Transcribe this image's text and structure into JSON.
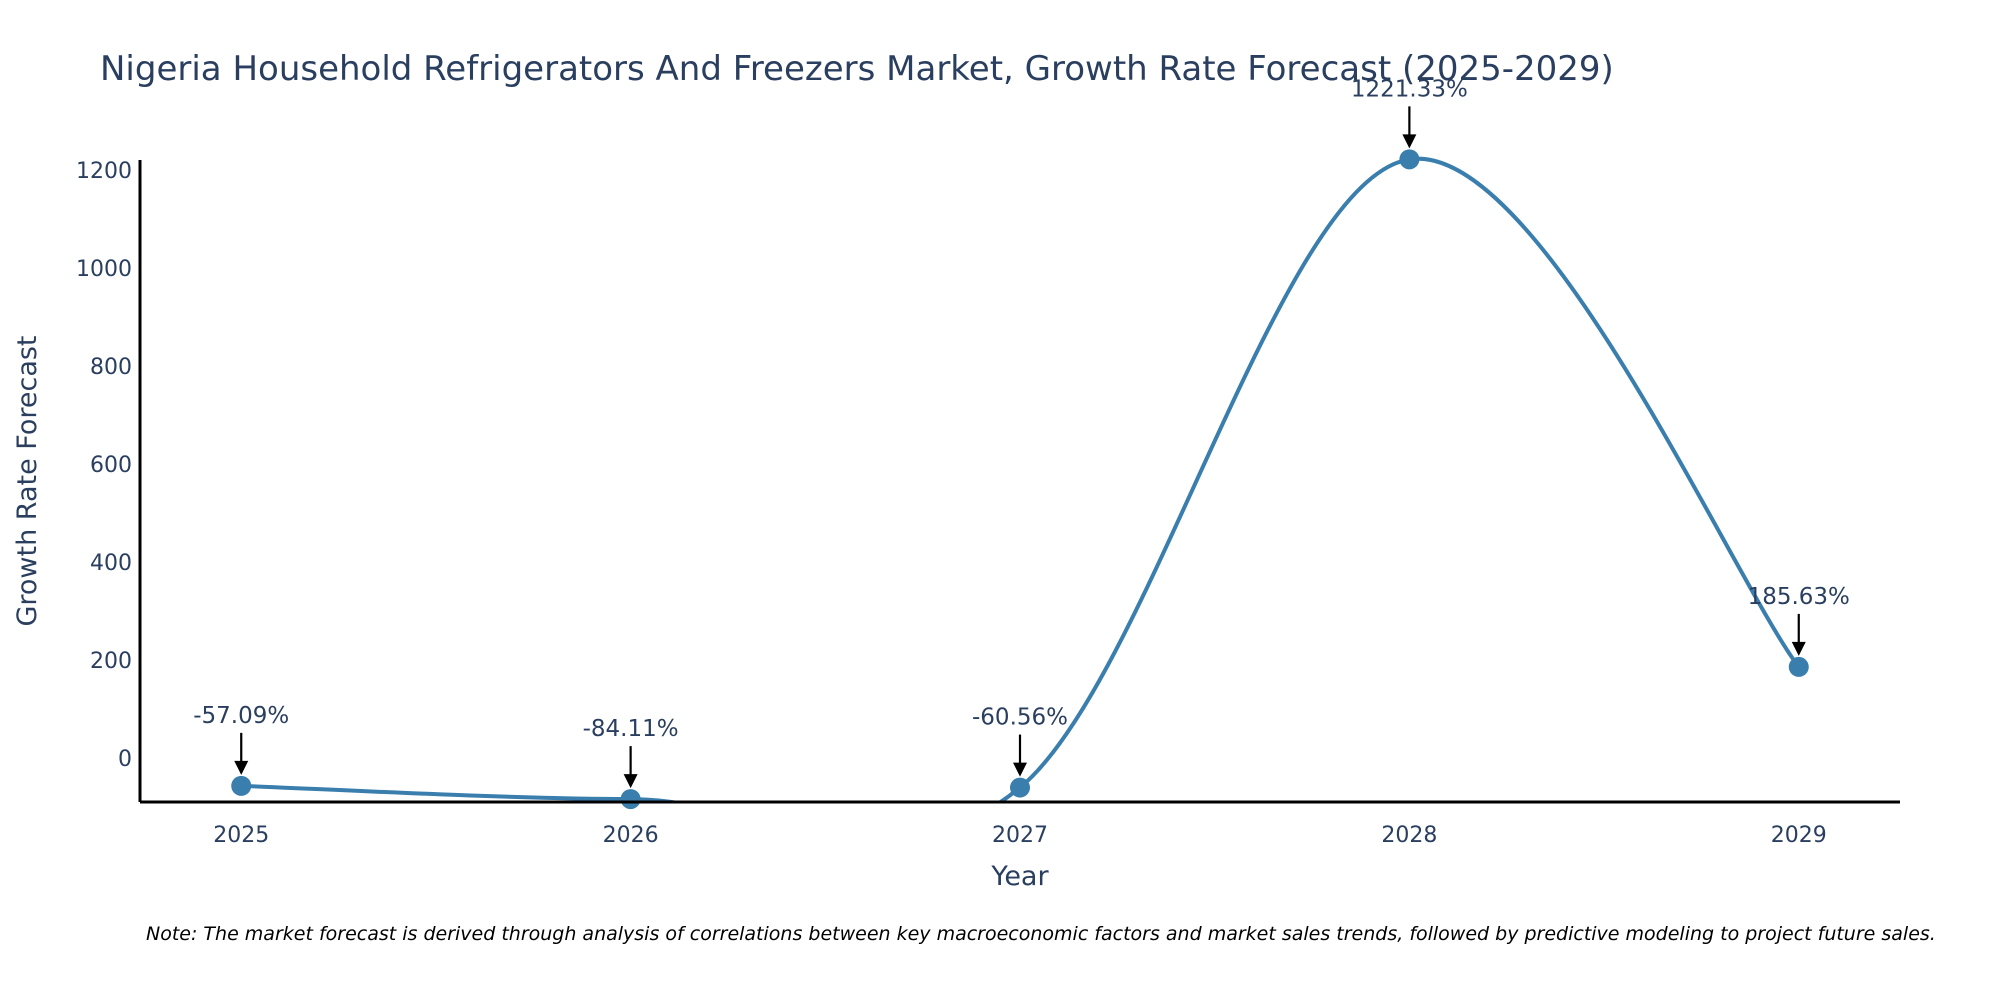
{
  "chart_data": {
    "type": "line",
    "title": "Nigeria Household Refrigerators And Freezers Market, Growth Rate Forecast (2025-2029)",
    "xlabel": "Year",
    "ylabel": "Growth Rate Forecast",
    "categories": [
      "2025",
      "2026",
      "2027",
      "2028",
      "2029"
    ],
    "x": [
      2025,
      2026,
      2027,
      2028,
      2029
    ],
    "values": [
      -57.09,
      -84.11,
      -60.56,
      1221.33,
      185.63
    ],
    "data_labels": [
      "-57.09%",
      "-84.11%",
      "-60.56%",
      "1221.33%",
      "185.63%"
    ],
    "yticks": [
      0,
      200,
      400,
      600,
      800,
      1000,
      1200
    ],
    "ytick_labels": [
      "0",
      "200",
      "400",
      "600",
      "800",
      "1000",
      "1200"
    ],
    "xlim": [
      2024.74,
      2029.26
    ],
    "ylim": [
      -90,
      1220
    ],
    "grid": false,
    "line_shape": "spline",
    "colors": {
      "line": "#3a7eae",
      "marker": "#3a7eae",
      "axis": "#000000",
      "text": "#2a3f5f",
      "arrow": "#000000"
    },
    "note": "Note: The market forecast is derived through analysis of correlations between key macroeconomic factors and market sales trends, followed by predictive modeling to project future sales."
  }
}
